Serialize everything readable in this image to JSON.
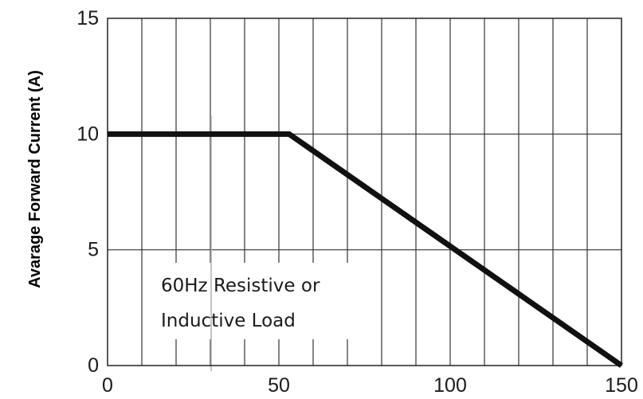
{
  "chart_data": {
    "type": "line",
    "title": "",
    "xlabel": "",
    "ylabel": "Avarage Forward Current (A)",
    "xlim": [
      0,
      150
    ],
    "ylim": [
      0,
      15
    ],
    "x_ticks": [
      "0",
      "50",
      "100",
      "150"
    ],
    "y_ticks": [
      "0",
      "5",
      "10",
      "15"
    ],
    "grid": true,
    "series": [
      {
        "x": [
          0,
          53,
          150
        ],
        "y": [
          10,
          10,
          0
        ]
      }
    ],
    "annotation": [
      "60Hz Resistive or",
      "Inductive Load"
    ]
  }
}
